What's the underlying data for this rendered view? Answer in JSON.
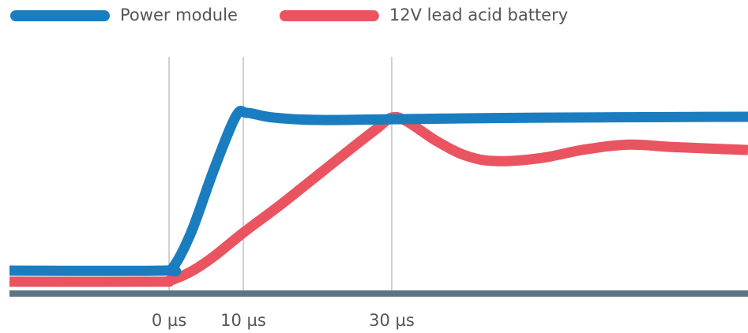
{
  "chart_data": {
    "type": "line",
    "xlim": [
      -21.5,
      78
    ],
    "ylim": [
      0,
      100
    ],
    "xticks": [
      {
        "value": 0,
        "label": "0 µs"
      },
      {
        "value": 10,
        "label": "10 µs"
      },
      {
        "value": 30,
        "label": "30 µs"
      }
    ],
    "grid": true,
    "series": [
      {
        "name": "Power module",
        "color": "#1a7dc0",
        "x": [
          -21.5,
          -1,
          0.5,
          3,
          6,
          9,
          10.5,
          14,
          20,
          30,
          45,
          60,
          78
        ],
        "values": [
          9.3,
          9.3,
          10.5,
          25,
          50,
          72,
          73.4,
          71.5,
          70.5,
          70.8,
          71.3,
          71.6,
          71.8
        ]
      },
      {
        "name": "12V lead acid battery",
        "color": "#ea5460",
        "x": [
          -21.5,
          -2,
          0,
          3,
          6,
          10,
          15,
          20,
          25,
          28,
          30,
          32,
          36,
          40,
          44,
          50,
          56,
          62,
          68,
          78
        ],
        "values": [
          4.8,
          4.8,
          5.2,
          9,
          15,
          24.7,
          36,
          48,
          60,
          67,
          71.5,
          70,
          62,
          56,
          53.8,
          55,
          58.5,
          60.5,
          59.5,
          58.3
        ]
      }
    ]
  }
}
